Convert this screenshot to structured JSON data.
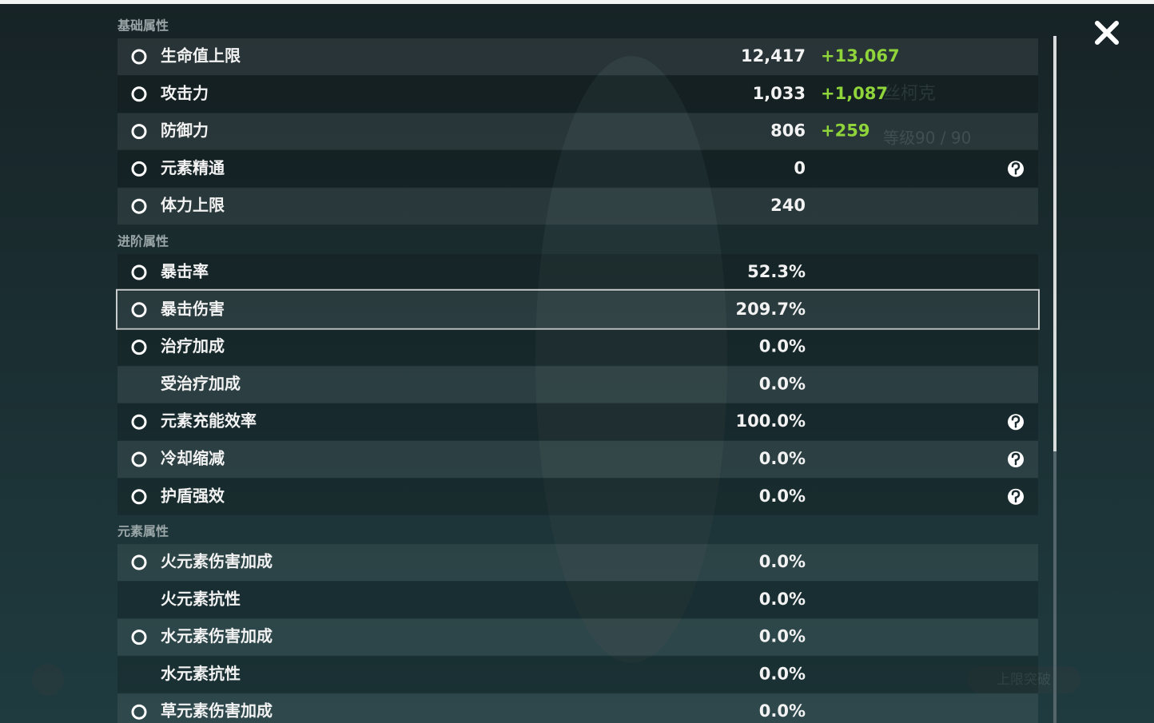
{
  "background": {
    "character_name": "丝柯克",
    "level": "等级90 / 90",
    "ascend_button": "上限突破"
  },
  "sections": [
    {
      "title": "基础属性",
      "rows": [
        {
          "label": "生命值上限",
          "value": "12,417",
          "bonus": "+13,067"
        },
        {
          "label": "攻击力",
          "value": "1,033",
          "bonus": "+1,087"
        },
        {
          "label": "防御力",
          "value": "806",
          "bonus": "+259"
        },
        {
          "label": "元素精通",
          "value": "0"
        },
        {
          "label": "体力上限",
          "value": "240"
        }
      ]
    },
    {
      "title": "进阶属性",
      "rows": [
        {
          "label": "暴击率",
          "value": "52.3%"
        },
        {
          "label": "暴击伤害",
          "value": "209.7%"
        },
        {
          "label": "治疗加成",
          "value": "0.0%"
        },
        {
          "label": "受治疗加成",
          "value": "0.0%"
        },
        {
          "label": "元素充能效率",
          "value": "100.0%"
        },
        {
          "label": "冷却缩减",
          "value": "0.0%"
        },
        {
          "label": "护盾强效",
          "value": "0.0%"
        }
      ]
    },
    {
      "title": "元素属性",
      "rows": [
        {
          "label": "火元素伤害加成",
          "value": "0.0%"
        },
        {
          "label": "火元素抗性",
          "value": "0.0%"
        },
        {
          "label": "水元素伤害加成",
          "value": "0.0%"
        },
        {
          "label": "水元素抗性",
          "value": "0.0%"
        },
        {
          "label": "草元素伤害加成",
          "value": "0.0%"
        }
      ]
    }
  ]
}
